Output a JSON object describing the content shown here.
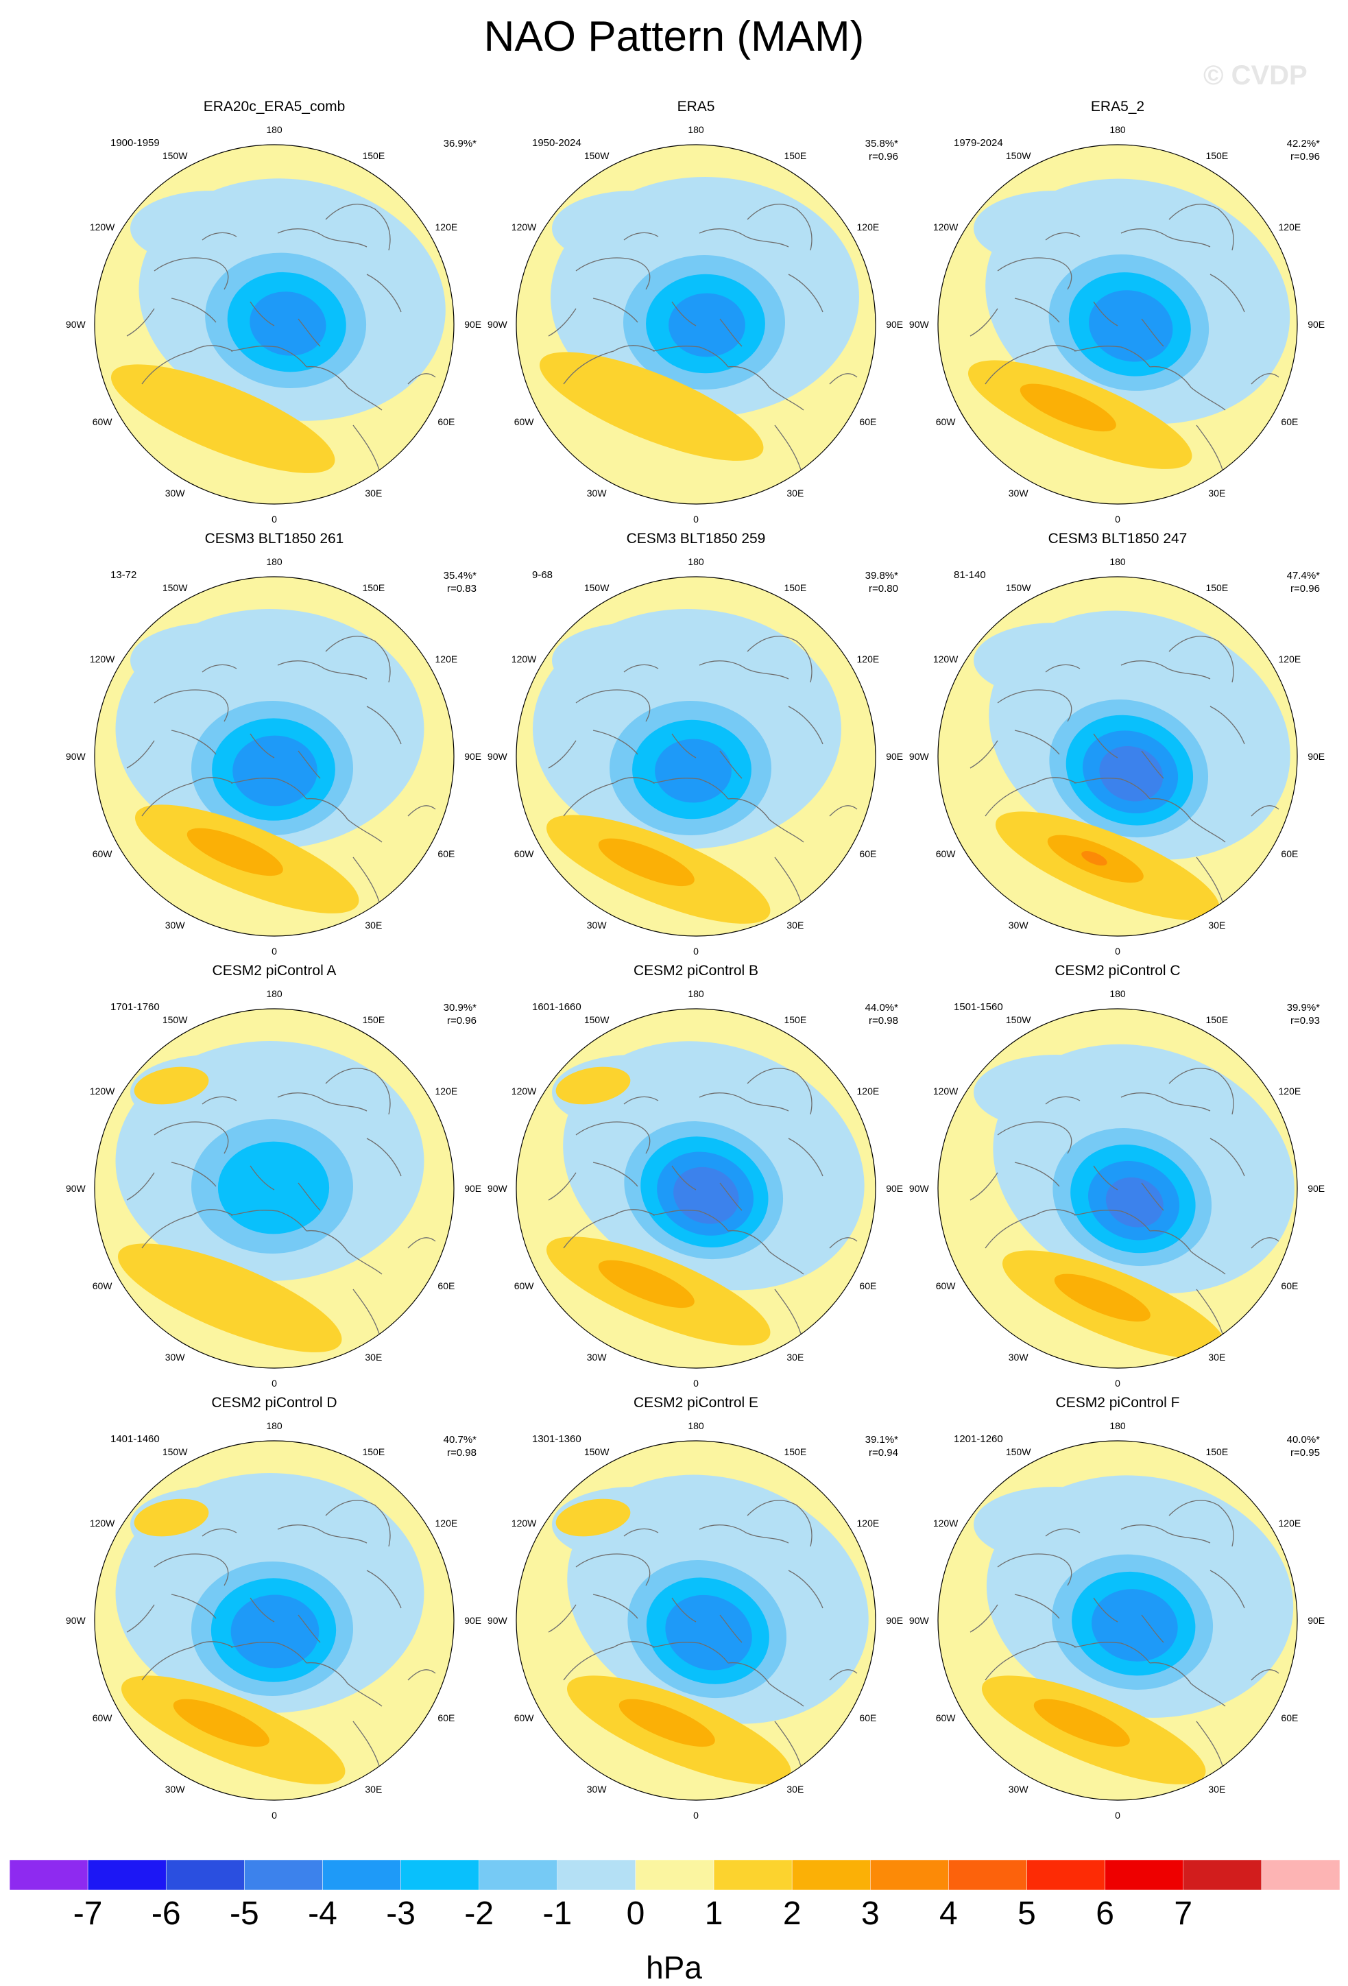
{
  "title": "NAO Pattern (MAM)",
  "watermark": "© CVDP",
  "lon_labels": [
    "180",
    "150E",
    "120E",
    "90E",
    "60E",
    "30E",
    "0",
    "30W",
    "60W",
    "90W",
    "120W",
    "150W"
  ],
  "panels": [
    {
      "title": "ERA20c_ERA5_comb",
      "period": "1900-1959",
      "variance": "36.9%*",
      "corr": "",
      "pattern": {
        "low_dx": 15,
        "low_dy": -8,
        "low_rot": 10,
        "low_str": 3.2,
        "high_dx": -110,
        "high_dy": 118,
        "high_str": 1.9,
        "high2": false
      }
    },
    {
      "title": "ERA5",
      "period": "1950-2024",
      "variance": "35.8%*",
      "corr": "r=0.96",
      "pattern": {
        "low_dx": 10,
        "low_dy": -5,
        "low_rot": 0,
        "low_str": 3.2,
        "high_dx": -100,
        "high_dy": 100,
        "high_str": 1.4,
        "high2": false
      }
    },
    {
      "title": "ERA5_2",
      "period": "1979-2024",
      "variance": "42.2%*",
      "corr": "r=0.96",
      "pattern": {
        "low_dx": 15,
        "low_dy": -5,
        "low_rot": 15,
        "low_str": 3.6,
        "high_dx": -90,
        "high_dy": 112,
        "high_str": 2.1,
        "high2": false
      }
    },
    {
      "title": "CESM3 BLT1850 261",
      "period": "13-72",
      "variance": "35.4%*",
      "corr": "r=0.83",
      "pattern": {
        "low_dx": -5,
        "low_dy": 15,
        "low_rot": 0,
        "low_str": 3.6,
        "high_dx": -75,
        "high_dy": 130,
        "high_str": 2.2,
        "high2": false
      }
    },
    {
      "title": "CESM3 BLT1850 259",
      "period": "9-68",
      "variance": "39.8%*",
      "corr": "r=0.80",
      "pattern": {
        "low_dx": -10,
        "low_dy": 15,
        "low_rot": 0,
        "low_str": 3.2,
        "high_dx": -90,
        "high_dy": 145,
        "high_str": 2.3,
        "high2": false
      }
    },
    {
      "title": "CESM3 BLT1850 247",
      "period": "81-140",
      "variance": "47.4%*",
      "corr": "r=0.96",
      "pattern": {
        "low_dx": 15,
        "low_dy": 15,
        "low_rot": 20,
        "low_str": 4.4,
        "high_dx": -50,
        "high_dy": 140,
        "high_str": 3.2,
        "high2": false
      }
    },
    {
      "title": "CESM2 piControl A",
      "period": "1701-1760",
      "variance": "30.9%*",
      "corr": "r=0.96",
      "pattern": {
        "low_dx": -5,
        "low_dy": -5,
        "low_rot": 0,
        "low_str": 2.6,
        "high_dx": -100,
        "high_dy": 140,
        "high_str": 1.8,
        "high2": true
      }
    },
    {
      "title": "CESM2 piControl B",
      "period": "1601-1660",
      "variance": "44.0%*",
      "corr": "r=0.98",
      "pattern": {
        "low_dx": 10,
        "low_dy": 0,
        "low_rot": 20,
        "low_str": 4.5,
        "high_dx": -90,
        "high_dy": 130,
        "high_str": 2.6,
        "high2": true
      }
    },
    {
      "title": "CESM2 piControl C",
      "period": "1501-1560",
      "variance": "39.9%*",
      "corr": "r=0.93",
      "pattern": {
        "low_dx": 20,
        "low_dy": 10,
        "low_rot": 20,
        "low_str": 4.1,
        "high_dx": -40,
        "high_dy": 150,
        "high_str": 2.4,
        "high2": false
      }
    },
    {
      "title": "CESM2 piControl D",
      "period": "1401-1460",
      "variance": "40.7%*",
      "corr": "r=0.98",
      "pattern": {
        "low_dx": -5,
        "low_dy": 10,
        "low_rot": 0,
        "low_str": 3.8,
        "high_dx": -95,
        "high_dy": 140,
        "high_str": 2.3,
        "high2": true
      }
    },
    {
      "title": "CESM2 piControl E",
      "period": "1301-1360",
      "variance": "39.1%*",
      "corr": "r=0.94",
      "pattern": {
        "low_dx": 15,
        "low_dy": 10,
        "low_rot": 20,
        "low_str": 3.8,
        "high_dx": -60,
        "high_dy": 140,
        "high_str": 2.5,
        "high2": true
      }
    },
    {
      "title": "CESM2 piControl F",
      "period": "1201-1260",
      "variance": "40.0%*",
      "corr": "r=0.95",
      "pattern": {
        "low_dx": 20,
        "low_dy": 0,
        "low_rot": 10,
        "low_str": 3.7,
        "high_dx": -70,
        "high_dy": 140,
        "high_str": 2.3,
        "high2": false
      }
    }
  ],
  "colorbar": {
    "unit": "hPa",
    "ticks": [
      "-7",
      "-6",
      "-5",
      "-4",
      "-3",
      "-2",
      "-1",
      "0",
      "1",
      "2",
      "3",
      "4",
      "5",
      "6",
      "7"
    ],
    "colors": [
      "#8e2af0",
      "#1c17f5",
      "#2a4fe0",
      "#3c82ec",
      "#1e9af8",
      "#09c0fc",
      "#76caf5",
      "#b4e0f5",
      "#fbf5a0",
      "#fcd32e",
      "#fbb006",
      "#fc8a07",
      "#fc620c",
      "#fd2b05",
      "#ee0000",
      "#d21d1d",
      "#fdb4b4"
    ]
  }
}
